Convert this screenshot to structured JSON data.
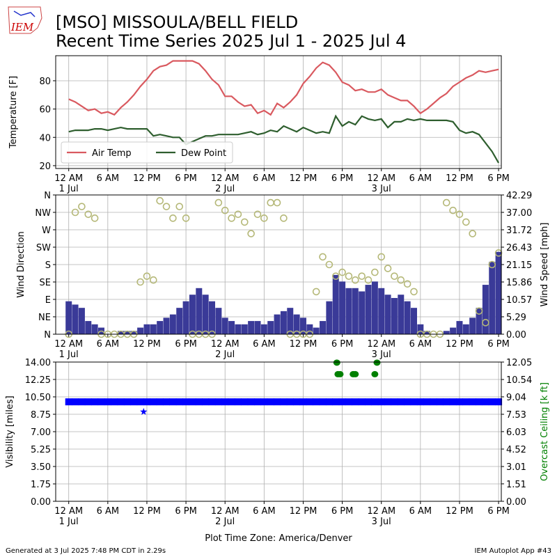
{
  "logo_text": "IEM",
  "title": [
    "[MSO] MISSOULA/BELL FIELD",
    "Recent Time Series 2025 Jul 1 - 2025 Jul 4"
  ],
  "footer": {
    "left": "Generated at 3 Jul 2025 7:48 PM CDT in 2.29s",
    "right": "IEM Autoplot App #43"
  },
  "chart_data": [
    {
      "type": "line",
      "ylabel": "Temperature [F]",
      "x": [
        "2025-07-01T00:00",
        "2025-07-01T01:00",
        "2025-07-01T02:00",
        "2025-07-01T03:00",
        "2025-07-01T04:00",
        "2025-07-01T05:00",
        "2025-07-01T06:00",
        "2025-07-01T07:00",
        "2025-07-01T08:00",
        "2025-07-01T09:00",
        "2025-07-01T10:00",
        "2025-07-01T11:00",
        "2025-07-01T12:00",
        "2025-07-01T13:00",
        "2025-07-01T14:00",
        "2025-07-01T15:00",
        "2025-07-01T16:00",
        "2025-07-01T17:00",
        "2025-07-01T18:00",
        "2025-07-01T19:00",
        "2025-07-01T20:00",
        "2025-07-01T21:00",
        "2025-07-01T22:00",
        "2025-07-01T23:00",
        "2025-07-02T00:00",
        "2025-07-02T01:00",
        "2025-07-02T02:00",
        "2025-07-02T03:00",
        "2025-07-02T04:00",
        "2025-07-02T05:00",
        "2025-07-02T06:00",
        "2025-07-02T07:00",
        "2025-07-02T08:00",
        "2025-07-02T09:00",
        "2025-07-02T10:00",
        "2025-07-02T11:00",
        "2025-07-02T12:00",
        "2025-07-02T13:00",
        "2025-07-02T14:00",
        "2025-07-02T15:00",
        "2025-07-02T16:00",
        "2025-07-02T17:00",
        "2025-07-02T18:00",
        "2025-07-02T19:00",
        "2025-07-02T20:00",
        "2025-07-02T21:00",
        "2025-07-02T22:00",
        "2025-07-02T23:00",
        "2025-07-03T00:00",
        "2025-07-03T01:00",
        "2025-07-03T02:00",
        "2025-07-03T03:00",
        "2025-07-03T04:00",
        "2025-07-03T05:00",
        "2025-07-03T06:00",
        "2025-07-03T07:00",
        "2025-07-03T08:00",
        "2025-07-03T09:00",
        "2025-07-03T10:00",
        "2025-07-03T11:00",
        "2025-07-03T12:00",
        "2025-07-03T13:00",
        "2025-07-03T14:00",
        "2025-07-03T15:00",
        "2025-07-03T16:00",
        "2025-07-03T17:00",
        "2025-07-03T18:00"
      ],
      "series": [
        {
          "name": "Air Temp",
          "color": "#d9595f",
          "values": [
            67,
            65,
            62,
            59,
            60,
            57,
            58,
            56,
            61,
            65,
            70,
            76,
            81,
            87,
            90,
            91,
            94,
            94,
            94,
            94,
            92,
            87,
            81,
            77,
            69,
            69,
            65,
            62,
            63,
            57,
            59,
            56,
            64,
            61,
            65,
            70,
            78,
            83,
            89,
            93,
            91,
            86,
            79,
            77,
            73,
            74,
            72,
            72,
            74,
            70,
            68,
            66,
            66,
            62,
            57,
            60,
            64,
            68,
            71,
            76,
            79,
            82,
            84,
            87,
            86,
            87,
            88
          ]
        },
        {
          "name": "Dew Point",
          "color": "#2e5e2e",
          "values": [
            44,
            45,
            45,
            45,
            46,
            46,
            45,
            46,
            47,
            46,
            46,
            46,
            46,
            41,
            42,
            41,
            40,
            40,
            35,
            37,
            39,
            41,
            41,
            42,
            42,
            42,
            42,
            43,
            44,
            42,
            43,
            45,
            44,
            48,
            46,
            44,
            47,
            45,
            43,
            44,
            43,
            55,
            48,
            51,
            49,
            55,
            53,
            52,
            53,
            47,
            51,
            51,
            53,
            52,
            53,
            52,
            52,
            52,
            52,
            51,
            45,
            43,
            44,
            42,
            36,
            30,
            22
          ]
        }
      ],
      "xlim": [
        "2025-06-30T22:00",
        "2025-07-03T18:25"
      ],
      "xticks": [
        {
          "value": "2025-07-01T00:00",
          "label": "12 AM\n1 Jul"
        },
        {
          "value": "2025-07-01T06:00",
          "label": "6 AM"
        },
        {
          "value": "2025-07-01T12:00",
          "label": "12 PM"
        },
        {
          "value": "2025-07-01T18:00",
          "label": "6 PM"
        },
        {
          "value": "2025-07-02T00:00",
          "label": "12 AM\n2 Jul"
        },
        {
          "value": "2025-07-02T06:00",
          "label": "6 AM"
        },
        {
          "value": "2025-07-02T12:00",
          "label": "12 PM"
        },
        {
          "value": "2025-07-02T18:00",
          "label": "6 PM"
        },
        {
          "value": "2025-07-03T00:00",
          "label": "12 AM\n3 Jul"
        },
        {
          "value": "2025-07-03T06:00",
          "label": "6 AM"
        },
        {
          "value": "2025-07-03T12:00",
          "label": "12 PM"
        },
        {
          "value": "2025-07-03T18:00",
          "label": "6 PM"
        }
      ],
      "ylim": [
        18,
        97.7
      ],
      "yticks": [
        20,
        40,
        60,
        80
      ],
      "grid": true,
      "legend": "lower left"
    },
    {
      "type": "combo",
      "ylabel": "Wind Direction",
      "y2label": "Wind Speed [mph]",
      "x": [
        "2025-07-01T00:00",
        "2025-07-01T01:00",
        "2025-07-01T02:00",
        "2025-07-01T03:00",
        "2025-07-01T04:00",
        "2025-07-01T05:00",
        "2025-07-01T06:00",
        "2025-07-01T07:00",
        "2025-07-01T08:00",
        "2025-07-01T09:00",
        "2025-07-01T10:00",
        "2025-07-01T11:00",
        "2025-07-01T12:00",
        "2025-07-01T13:00",
        "2025-07-01T14:00",
        "2025-07-01T15:00",
        "2025-07-01T16:00",
        "2025-07-01T17:00",
        "2025-07-01T18:00",
        "2025-07-01T19:00",
        "2025-07-01T20:00",
        "2025-07-01T21:00",
        "2025-07-01T22:00",
        "2025-07-01T23:00",
        "2025-07-02T00:00",
        "2025-07-02T01:00",
        "2025-07-02T02:00",
        "2025-07-02T03:00",
        "2025-07-02T04:00",
        "2025-07-02T05:00",
        "2025-07-02T06:00",
        "2025-07-02T07:00",
        "2025-07-02T08:00",
        "2025-07-02T09:00",
        "2025-07-02T10:00",
        "2025-07-02T11:00",
        "2025-07-02T12:00",
        "2025-07-02T13:00",
        "2025-07-02T14:00",
        "2025-07-02T15:00",
        "2025-07-02T16:00",
        "2025-07-02T17:00",
        "2025-07-02T18:00",
        "2025-07-02T19:00",
        "2025-07-02T20:00",
        "2025-07-02T21:00",
        "2025-07-02T22:00",
        "2025-07-02T23:00",
        "2025-07-03T00:00",
        "2025-07-03T01:00",
        "2025-07-03T02:00",
        "2025-07-03T03:00",
        "2025-07-03T04:00",
        "2025-07-03T05:00",
        "2025-07-03T06:00",
        "2025-07-03T07:00",
        "2025-07-03T08:00",
        "2025-07-03T09:00",
        "2025-07-03T10:00",
        "2025-07-03T11:00",
        "2025-07-03T12:00",
        "2025-07-03T13:00",
        "2025-07-03T14:00",
        "2025-07-03T15:00",
        "2025-07-03T16:00",
        "2025-07-03T17:00",
        "2025-07-03T18:00"
      ],
      "series": [
        {
          "kind": "bar",
          "axis": "y2",
          "color": "#3a3a98",
          "values": [
            10,
            9,
            8,
            4,
            3,
            2,
            0,
            0,
            1,
            1,
            1,
            2,
            3,
            3,
            4,
            5,
            6,
            8,
            10,
            12,
            14,
            12,
            10,
            8,
            5,
            4,
            3,
            3,
            4,
            4,
            3,
            4,
            6,
            7,
            8,
            6,
            5,
            3,
            2,
            4,
            10,
            18,
            16,
            14,
            14,
            13,
            15,
            16,
            14,
            12,
            11,
            12,
            10,
            8,
            3,
            1,
            0,
            0,
            1,
            2,
            4,
            3,
            5,
            8,
            15,
            22,
            25
          ]
        },
        {
          "kind": "scatter",
          "marker": "ring",
          "color": "#b5b878",
          "values": [
            0,
            315,
            330,
            310,
            300,
            0,
            0,
            0,
            0,
            0,
            0,
            135,
            150,
            140,
            345,
            330,
            300,
            330,
            300,
            0,
            0,
            0,
            0,
            340,
            320,
            300,
            310,
            290,
            260,
            310,
            300,
            340,
            340,
            300,
            0,
            0,
            0,
            0,
            110,
            200,
            180,
            150,
            160,
            150,
            140,
            150,
            140,
            160,
            200,
            170,
            150,
            140,
            130,
            110,
            0,
            0,
            0,
            0,
            340,
            320,
            310,
            290,
            260,
            60,
            30,
            180,
            210
          ]
        }
      ],
      "xlim": [
        "2025-06-30T22:00",
        "2025-07-03T18:25"
      ],
      "xticks": [
        {
          "value": "2025-07-01T00:00",
          "label": "12 AM\n1 Jul"
        },
        {
          "value": "2025-07-01T06:00",
          "label": "6 AM"
        },
        {
          "value": "2025-07-01T12:00",
          "label": "12 PM"
        },
        {
          "value": "2025-07-01T18:00",
          "label": "6 PM"
        },
        {
          "value": "2025-07-02T00:00",
          "label": "12 AM\n2 Jul"
        },
        {
          "value": "2025-07-02T06:00",
          "label": "6 AM"
        },
        {
          "value": "2025-07-02T12:00",
          "label": "12 PM"
        },
        {
          "value": "2025-07-02T18:00",
          "label": "6 PM"
        },
        {
          "value": "2025-07-03T00:00",
          "label": "12 AM\n3 Jul"
        },
        {
          "value": "2025-07-03T06:00",
          "label": "6 AM"
        },
        {
          "value": "2025-07-03T12:00",
          "label": "12 PM"
        },
        {
          "value": "2025-07-03T18:00",
          "label": "6 PM"
        }
      ],
      "ylim": [
        0,
        360
      ],
      "yticks": [
        {
          "value": 0,
          "label": "N"
        },
        {
          "value": 45,
          "label": "NE"
        },
        {
          "value": 90,
          "label": "E"
        },
        {
          "value": 135,
          "label": "SE"
        },
        {
          "value": 180,
          "label": "S"
        },
        {
          "value": 225,
          "label": "SW"
        },
        {
          "value": 270,
          "label": "W"
        },
        {
          "value": 315,
          "label": "NW"
        },
        {
          "value": 360,
          "label": "N"
        }
      ],
      "y2lim": [
        0,
        42.29
      ],
      "y2ticks": [
        {
          "value": 0,
          "label": "0.00"
        },
        5.29,
        10.57,
        15.86,
        21.15,
        26.43,
        31.72,
        {
          "value": 37,
          "label": "37.00"
        },
        42.29
      ],
      "grid": true
    },
    {
      "type": "scatter",
      "ylabel": "Visibility [miles]",
      "y2label": "Overcast Ceiling [k ft]",
      "y2color": "#008000",
      "xlabel": "Plot Time Zone: America/Denver",
      "x": [
        "2025-07-01T00:00",
        "2025-07-01T01:00",
        "2025-07-01T02:00",
        "2025-07-01T03:00",
        "2025-07-01T04:00",
        "2025-07-01T05:00",
        "2025-07-01T06:00",
        "2025-07-01T07:00",
        "2025-07-01T08:00",
        "2025-07-01T09:00",
        "2025-07-01T10:00",
        "2025-07-01T11:00",
        "2025-07-01T12:00",
        "2025-07-01T13:00",
        "2025-07-01T14:00",
        "2025-07-01T15:00",
        "2025-07-01T16:00",
        "2025-07-01T17:00",
        "2025-07-01T18:00",
        "2025-07-01T19:00",
        "2025-07-01T20:00",
        "2025-07-01T21:00",
        "2025-07-01T22:00",
        "2025-07-01T23:00",
        "2025-07-02T00:00",
        "2025-07-02T01:00",
        "2025-07-02T02:00",
        "2025-07-02T03:00",
        "2025-07-02T04:00",
        "2025-07-02T05:00",
        "2025-07-02T06:00",
        "2025-07-02T07:00",
        "2025-07-02T08:00",
        "2025-07-02T09:00",
        "2025-07-02T10:00",
        "2025-07-02T11:00",
        "2025-07-02T12:00",
        "2025-07-02T13:00",
        "2025-07-02T14:00",
        "2025-07-02T15:00",
        "2025-07-02T16:00",
        "2025-07-02T17:00",
        "2025-07-02T18:00",
        "2025-07-02T19:00",
        "2025-07-02T20:00",
        "2025-07-02T21:00",
        "2025-07-02T22:00",
        "2025-07-02T23:00",
        "2025-07-03T00:00",
        "2025-07-03T01:00",
        "2025-07-03T02:00",
        "2025-07-03T03:00",
        "2025-07-03T04:00",
        "2025-07-03T05:00",
        "2025-07-03T06:00",
        "2025-07-03T07:00",
        "2025-07-03T08:00",
        "2025-07-03T09:00",
        "2025-07-03T10:00",
        "2025-07-03T11:00",
        "2025-07-03T12:00",
        "2025-07-03T13:00",
        "2025-07-03T14:00",
        "2025-07-03T15:00",
        "2025-07-03T16:00",
        "2025-07-03T17:00",
        "2025-07-03T18:00"
      ],
      "series": [
        {
          "marker": "square",
          "color": "#0000ff",
          "values": [
            10,
            10,
            10,
            10,
            10,
            10,
            10,
            10,
            10,
            10,
            10,
            10,
            10,
            10,
            10,
            10,
            10,
            10,
            10,
            10,
            10,
            10,
            10,
            10,
            10,
            10,
            10,
            10,
            10,
            10,
            10,
            10,
            10,
            10,
            10,
            10,
            10,
            10,
            10,
            10,
            10,
            10,
            10,
            10,
            10,
            10,
            10,
            10,
            10,
            10,
            10,
            10,
            10,
            10,
            10,
            10,
            10,
            10,
            10,
            10,
            10,
            10,
            10,
            10,
            10,
            10,
            10
          ]
        },
        {
          "marker": "star",
          "color": "#0000ff",
          "x": [
            "2025-07-01T11:30"
          ],
          "values": [
            9
          ]
        },
        {
          "marker": "circle",
          "color": "#008000",
          "axis": "y2",
          "x": [
            "2025-07-02T17:10",
            "2025-07-02T17:20",
            "2025-07-02T17:40",
            "2025-07-02T19:40",
            "2025-07-02T20:00",
            "2025-07-02T23:00",
            "2025-07-02T23:20"
          ],
          "values": [
            12,
            11,
            11,
            11,
            11,
            11,
            12
          ]
        }
      ],
      "xlim": [
        "2025-06-30T22:00",
        "2025-07-03T18:25"
      ],
      "xticks": [
        {
          "value": "2025-07-01T00:00",
          "label": "12 AM\n1 Jul"
        },
        {
          "value": "2025-07-01T06:00",
          "label": "6 AM"
        },
        {
          "value": "2025-07-01T12:00",
          "label": "12 PM"
        },
        {
          "value": "2025-07-01T18:00",
          "label": "6 PM"
        },
        {
          "value": "2025-07-02T00:00",
          "label": "12 AM\n2 Jul"
        },
        {
          "value": "2025-07-02T06:00",
          "label": "6 AM"
        },
        {
          "value": "2025-07-02T12:00",
          "label": "12 PM"
        },
        {
          "value": "2025-07-02T18:00",
          "label": "6 PM"
        },
        {
          "value": "2025-07-03T00:00",
          "label": "12 AM\n3 Jul"
        },
        {
          "value": "2025-07-03T06:00",
          "label": "6 AM"
        },
        {
          "value": "2025-07-03T12:00",
          "label": "12 PM"
        },
        {
          "value": "2025-07-03T18:00",
          "label": "6 PM"
        }
      ],
      "ylim": [
        0,
        14
      ],
      "yticks": [
        {
          "value": 0,
          "label": "0.00"
        },
        1.75,
        {
          "value": 3.5,
          "label": "3.50"
        },
        5.25,
        {
          "value": 7,
          "label": "7.00"
        },
        8.75,
        {
          "value": 10.5,
          "label": "10.50"
        },
        12.25,
        {
          "value": 14,
          "label": "14.00"
        }
      ],
      "y2lim": [
        0,
        12.05
      ],
      "y2ticks": [
        {
          "value": 0,
          "label": "0.00"
        },
        1.51,
        3.01,
        4.52,
        6.03,
        7.53,
        9.04,
        10.54,
        12.05
      ],
      "grid": true
    }
  ]
}
